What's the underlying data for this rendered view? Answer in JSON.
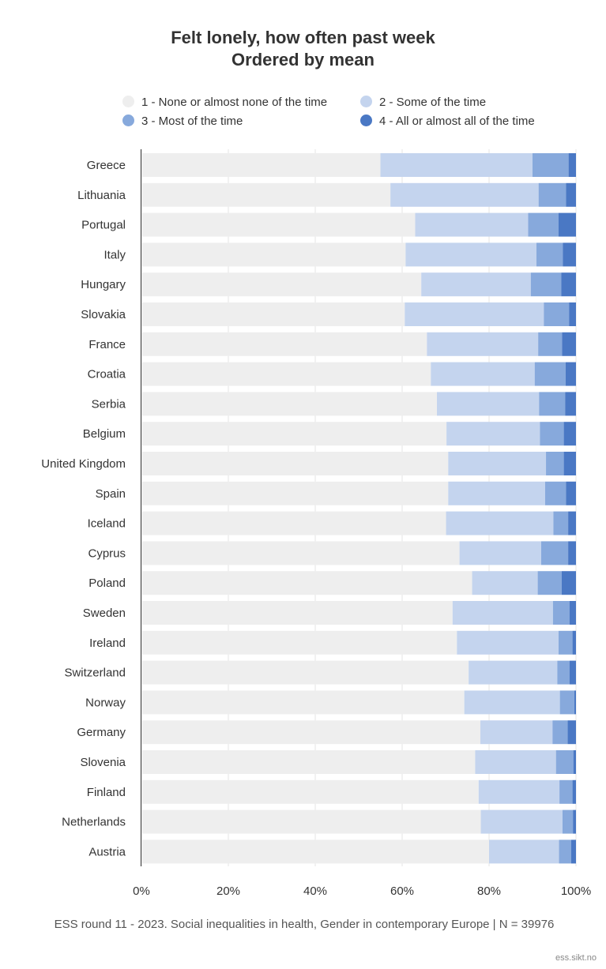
{
  "title_line1": "Felt lonely, how often past week",
  "title_line2": "Ordered by mean",
  "caption": "ESS round 11 - 2023. Social inequalities in health, Gender in contemporary Europe | N = 39976",
  "credit": "ess.sikt.no",
  "chart_data": {
    "type": "bar",
    "orientation": "horizontal",
    "stacked": true,
    "title": "Felt lonely, how often past week / Ordered by mean",
    "xlim": [
      0,
      100
    ],
    "x_ticks": [
      "0%",
      "20%",
      "40%",
      "60%",
      "80%",
      "100%"
    ],
    "grid": true,
    "legend_position": "top",
    "categories": [
      "Greece",
      "Lithuania",
      "Portugal",
      "Italy",
      "Hungary",
      "Slovakia",
      "France",
      "Croatia",
      "Serbia",
      "Belgium",
      "United Kingdom",
      "Spain",
      "Iceland",
      "Cyprus",
      "Poland",
      "Sweden",
      "Ireland",
      "Switzerland",
      "Norway",
      "Germany",
      "Slovenia",
      "Finland",
      "Netherlands",
      "Austria"
    ],
    "series": [
      {
        "name": "1 - None or almost none of the time",
        "color": "#eeeeee",
        "values": [
          55.0,
          57.3,
          63.0,
          60.8,
          64.4,
          60.6,
          65.7,
          66.6,
          68.0,
          70.2,
          70.6,
          70.6,
          70.1,
          73.2,
          76.1,
          71.6,
          72.6,
          75.3,
          74.3,
          78.0,
          76.8,
          77.6,
          78.1,
          80.0
        ]
      },
      {
        "name": "2 - Some of the time",
        "color": "#c4d4ee",
        "values": [
          35.0,
          34.1,
          26.0,
          30.1,
          25.2,
          32.0,
          25.6,
          23.9,
          23.5,
          21.5,
          22.5,
          22.3,
          24.7,
          18.8,
          15.1,
          23.1,
          23.4,
          20.4,
          22.0,
          16.6,
          18.6,
          18.6,
          18.8,
          16.1
        ]
      },
      {
        "name": "3 - Most of the time",
        "color": "#87a9dc",
        "values": [
          8.3,
          6.3,
          7.0,
          6.1,
          7.0,
          5.8,
          5.5,
          7.1,
          6.0,
          5.5,
          4.1,
          4.8,
          3.4,
          6.2,
          5.5,
          3.8,
          3.2,
          2.8,
          3.3,
          3.5,
          4.0,
          3.0,
          2.4,
          2.8
        ]
      },
      {
        "name": "4 - All or almost all of the time",
        "color": "#4a78c4",
        "values": [
          1.7,
          2.3,
          4.0,
          3.0,
          3.4,
          1.6,
          3.2,
          2.4,
          2.5,
          2.8,
          2.8,
          2.3,
          1.8,
          1.8,
          3.3,
          1.5,
          0.8,
          1.5,
          0.4,
          1.9,
          0.6,
          0.8,
          0.7,
          1.1
        ]
      }
    ]
  }
}
